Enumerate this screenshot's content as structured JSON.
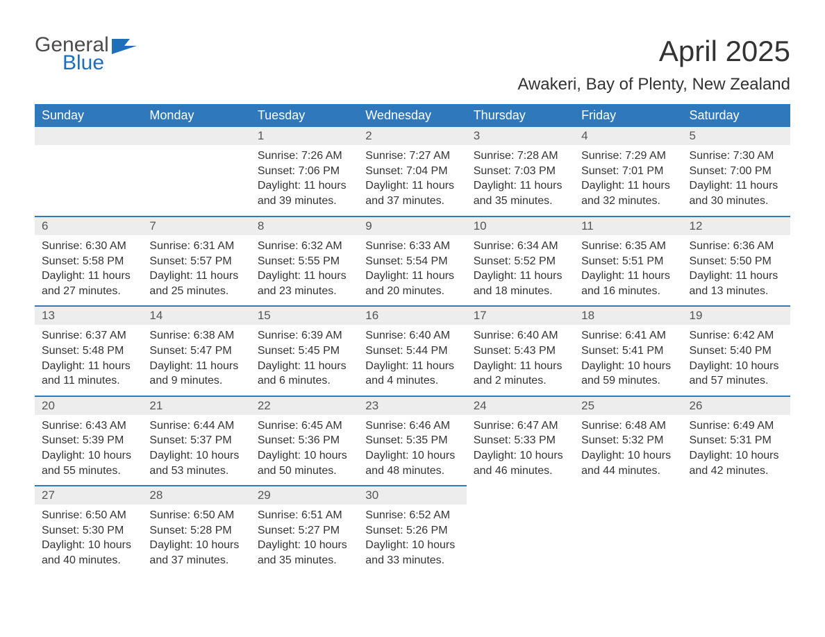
{
  "logo": {
    "word1": "General",
    "word2": "Blue",
    "icon_color": "#1f6fb8",
    "text1_color": "#4b4b4b",
    "text2_color": "#1f6fb8"
  },
  "title": "April 2025",
  "location": "Awakeri, Bay of Plenty, New Zealand",
  "colors": {
    "header_bg": "#2f78bc",
    "header_text": "#ffffff",
    "daynum_bg": "#ededed",
    "row_border": "#2f78bc",
    "body_text": "#333333",
    "page_bg": "#ffffff"
  },
  "typography": {
    "title_fontsize": 42,
    "location_fontsize": 24,
    "dayheader_fontsize": 18,
    "daynum_fontsize": 17,
    "cell_fontsize": 16,
    "font_family": "Arial"
  },
  "day_headers": [
    "Sunday",
    "Monday",
    "Tuesday",
    "Wednesday",
    "Thursday",
    "Friday",
    "Saturday"
  ],
  "weeks": [
    [
      null,
      null,
      {
        "n": "1",
        "sunrise": "7:26 AM",
        "sunset": "7:06 PM",
        "daylight": "11 hours and 39 minutes."
      },
      {
        "n": "2",
        "sunrise": "7:27 AM",
        "sunset": "7:04 PM",
        "daylight": "11 hours and 37 minutes."
      },
      {
        "n": "3",
        "sunrise": "7:28 AM",
        "sunset": "7:03 PM",
        "daylight": "11 hours and 35 minutes."
      },
      {
        "n": "4",
        "sunrise": "7:29 AM",
        "sunset": "7:01 PM",
        "daylight": "11 hours and 32 minutes."
      },
      {
        "n": "5",
        "sunrise": "7:30 AM",
        "sunset": "7:00 PM",
        "daylight": "11 hours and 30 minutes."
      }
    ],
    [
      {
        "n": "6",
        "sunrise": "6:30 AM",
        "sunset": "5:58 PM",
        "daylight": "11 hours and 27 minutes."
      },
      {
        "n": "7",
        "sunrise": "6:31 AM",
        "sunset": "5:57 PM",
        "daylight": "11 hours and 25 minutes."
      },
      {
        "n": "8",
        "sunrise": "6:32 AM",
        "sunset": "5:55 PM",
        "daylight": "11 hours and 23 minutes."
      },
      {
        "n": "9",
        "sunrise": "6:33 AM",
        "sunset": "5:54 PM",
        "daylight": "11 hours and 20 minutes."
      },
      {
        "n": "10",
        "sunrise": "6:34 AM",
        "sunset": "5:52 PM",
        "daylight": "11 hours and 18 minutes."
      },
      {
        "n": "11",
        "sunrise": "6:35 AM",
        "sunset": "5:51 PM",
        "daylight": "11 hours and 16 minutes."
      },
      {
        "n": "12",
        "sunrise": "6:36 AM",
        "sunset": "5:50 PM",
        "daylight": "11 hours and 13 minutes."
      }
    ],
    [
      {
        "n": "13",
        "sunrise": "6:37 AM",
        "sunset": "5:48 PM",
        "daylight": "11 hours and 11 minutes."
      },
      {
        "n": "14",
        "sunrise": "6:38 AM",
        "sunset": "5:47 PM",
        "daylight": "11 hours and 9 minutes."
      },
      {
        "n": "15",
        "sunrise": "6:39 AM",
        "sunset": "5:45 PM",
        "daylight": "11 hours and 6 minutes."
      },
      {
        "n": "16",
        "sunrise": "6:40 AM",
        "sunset": "5:44 PM",
        "daylight": "11 hours and 4 minutes."
      },
      {
        "n": "17",
        "sunrise": "6:40 AM",
        "sunset": "5:43 PM",
        "daylight": "11 hours and 2 minutes."
      },
      {
        "n": "18",
        "sunrise": "6:41 AM",
        "sunset": "5:41 PM",
        "daylight": "10 hours and 59 minutes."
      },
      {
        "n": "19",
        "sunrise": "6:42 AM",
        "sunset": "5:40 PM",
        "daylight": "10 hours and 57 minutes."
      }
    ],
    [
      {
        "n": "20",
        "sunrise": "6:43 AM",
        "sunset": "5:39 PM",
        "daylight": "10 hours and 55 minutes."
      },
      {
        "n": "21",
        "sunrise": "6:44 AM",
        "sunset": "5:37 PM",
        "daylight": "10 hours and 53 minutes."
      },
      {
        "n": "22",
        "sunrise": "6:45 AM",
        "sunset": "5:36 PM",
        "daylight": "10 hours and 50 minutes."
      },
      {
        "n": "23",
        "sunrise": "6:46 AM",
        "sunset": "5:35 PM",
        "daylight": "10 hours and 48 minutes."
      },
      {
        "n": "24",
        "sunrise": "6:47 AM",
        "sunset": "5:33 PM",
        "daylight": "10 hours and 46 minutes."
      },
      {
        "n": "25",
        "sunrise": "6:48 AM",
        "sunset": "5:32 PM",
        "daylight": "10 hours and 44 minutes."
      },
      {
        "n": "26",
        "sunrise": "6:49 AM",
        "sunset": "5:31 PM",
        "daylight": "10 hours and 42 minutes."
      }
    ],
    [
      {
        "n": "27",
        "sunrise": "6:50 AM",
        "sunset": "5:30 PM",
        "daylight": "10 hours and 40 minutes."
      },
      {
        "n": "28",
        "sunrise": "6:50 AM",
        "sunset": "5:28 PM",
        "daylight": "10 hours and 37 minutes."
      },
      {
        "n": "29",
        "sunrise": "6:51 AM",
        "sunset": "5:27 PM",
        "daylight": "10 hours and 35 minutes."
      },
      {
        "n": "30",
        "sunrise": "6:52 AM",
        "sunset": "5:26 PM",
        "daylight": "10 hours and 33 minutes."
      },
      null,
      null,
      null
    ]
  ],
  "labels": {
    "sunrise": "Sunrise: ",
    "sunset": "Sunset: ",
    "daylight": "Daylight: "
  }
}
